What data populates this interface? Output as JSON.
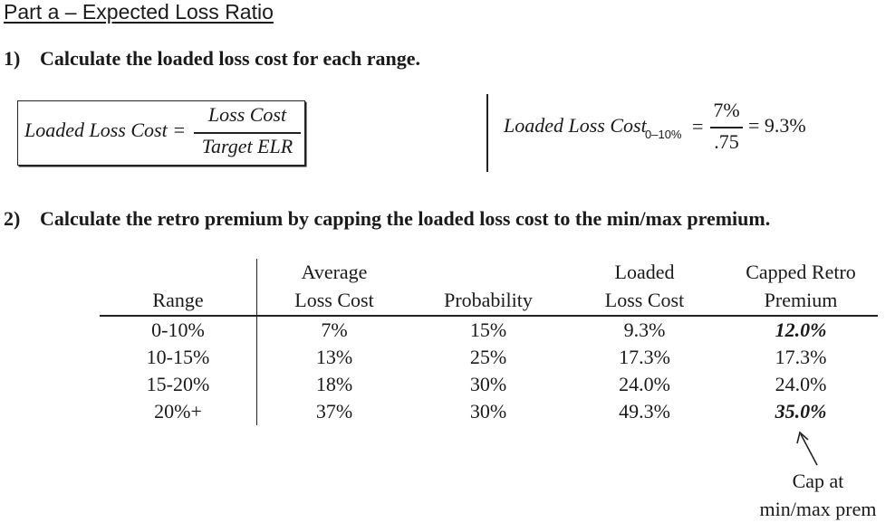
{
  "part_title": "Part a – Expected Loss Ratio",
  "question1": {
    "number": "1)",
    "text": "Calculate the loaded loss cost for each range."
  },
  "formula": {
    "lhs": "Loaded Loss Cost =",
    "numerator": "Loss Cost",
    "denominator": "Target ELR"
  },
  "example": {
    "lhs": "Loaded Loss Cost",
    "subscript": "0–10%",
    "eq": "=",
    "numerator": "7%",
    "denominator": ".75",
    "result": "= 9.3%"
  },
  "question2": {
    "number": "2)",
    "text": "Calculate the retro premium by capping the loaded loss cost to the min/max premium."
  },
  "table": {
    "headers": [
      {
        "line1": "",
        "line2": "Range"
      },
      {
        "line1": "Average",
        "line2": "Loss Cost"
      },
      {
        "line1": "",
        "line2": "Probability"
      },
      {
        "line1": "Loaded",
        "line2": "Loss Cost"
      },
      {
        "line1": "Capped Retro",
        "line2": "Premium"
      }
    ],
    "rows": [
      [
        "0-10%",
        "7%",
        "15%",
        "9.3%",
        "12.0%"
      ],
      [
        "10-15%",
        "13%",
        "25%",
        "17.3%",
        "17.3%"
      ],
      [
        "15-20%",
        "18%",
        "30%",
        "24.0%",
        "24.0%"
      ],
      [
        "20%+",
        "37%",
        "30%",
        "49.3%",
        "35.0%"
      ]
    ]
  },
  "cap_note": {
    "line1": "Cap at",
    "line2": "min/max prem"
  }
}
